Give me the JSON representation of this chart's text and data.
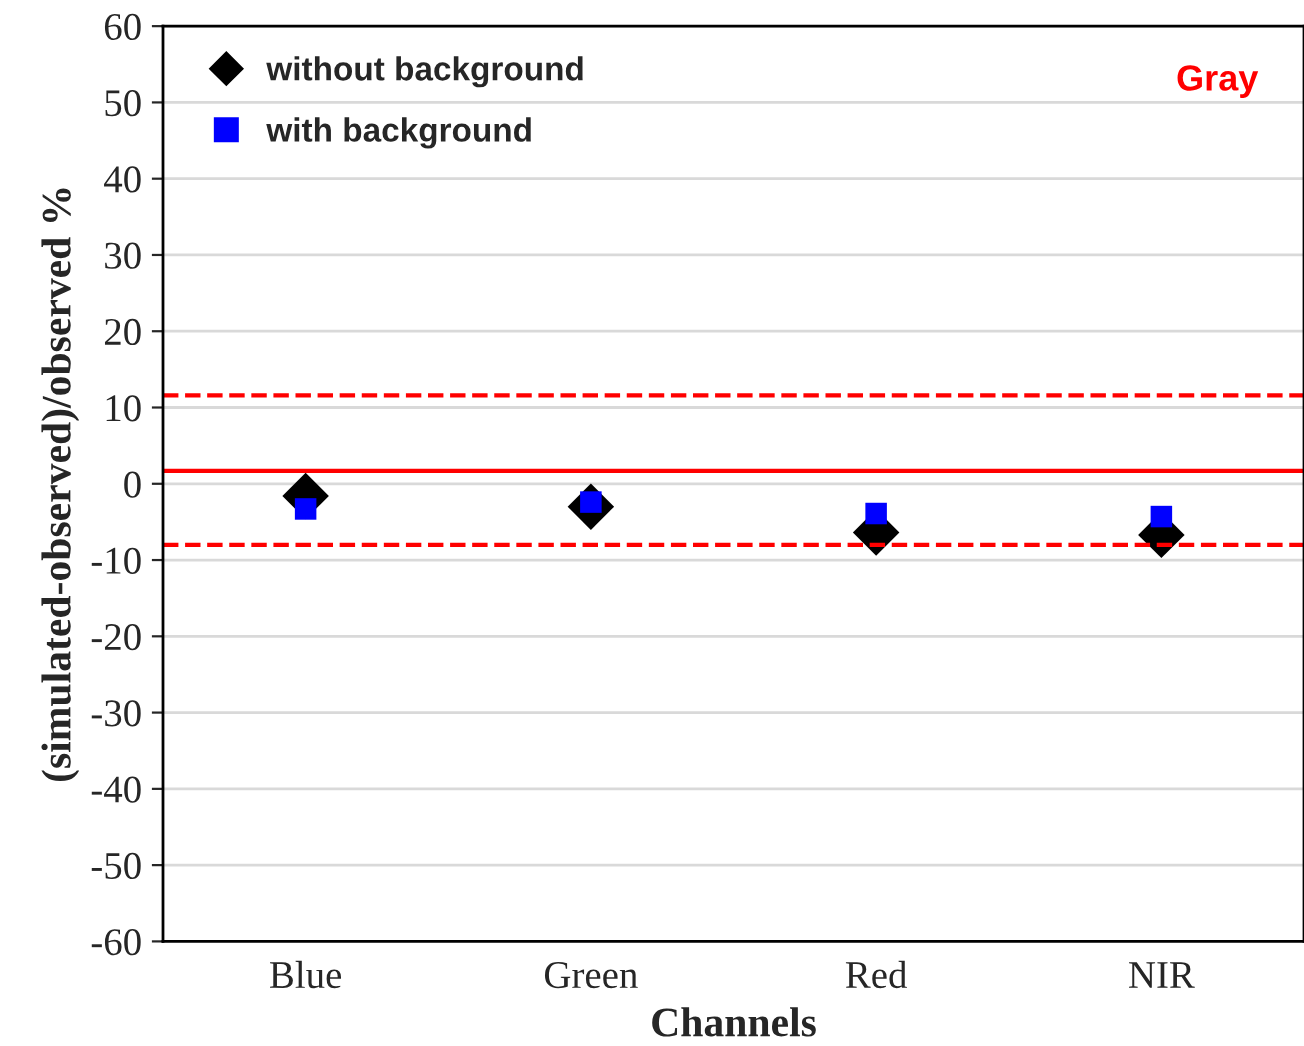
{
  "chart_data": {
    "type": "scatter",
    "xlabel": "Channels",
    "ylabel": "(simulated-observed)/observed %",
    "categories": [
      "Blue",
      "Green",
      "Red",
      "NIR"
    ],
    "series": [
      {
        "name": "without background",
        "color": "#000000",
        "marker": "diamond",
        "values": [
          -1.6,
          -3.0,
          -6.4,
          -6.7
        ]
      },
      {
        "name": "with background",
        "color": "#0000ff",
        "marker": "square",
        "values": [
          -3.3,
          -2.4,
          -3.9,
          -4.3
        ]
      }
    ],
    "ylim": [
      -60,
      60
    ],
    "yticks": [
      -60,
      -50,
      -40,
      -30,
      -20,
      -10,
      0,
      10,
      20,
      30,
      40,
      50,
      60
    ],
    "grid": "y",
    "legend": "top left",
    "ref_lines": [
      {
        "axis": "y",
        "value": 11.6,
        "color": "#ff0000",
        "line_style": "dashed"
      },
      {
        "axis": "y",
        "value": 1.7,
        "color": "#ff0000",
        "line_style": "solid"
      },
      {
        "axis": "y",
        "value": -8,
        "color": "#ff0000",
        "line_style": "dashed"
      }
    ],
    "annotations": [
      "Gray"
    ]
  }
}
